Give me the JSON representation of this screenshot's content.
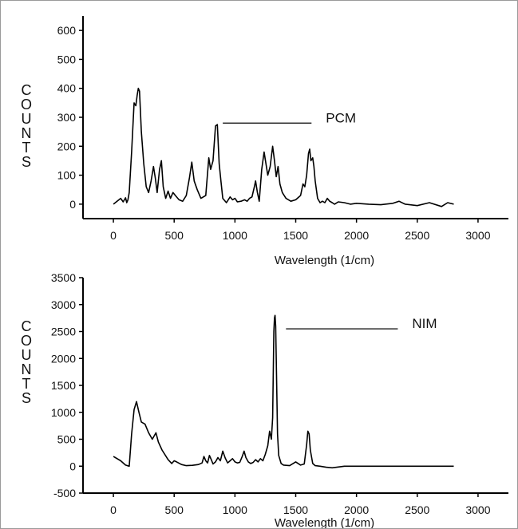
{
  "chart_data": [
    {
      "type": "line",
      "xlabel": "Wavelength (1/cm)",
      "ylabel": "COUNTS",
      "xlim": [
        -250,
        3250
      ],
      "ylim": [
        -50,
        650
      ],
      "xticks": [
        0,
        500,
        1000,
        1500,
        2000,
        2500,
        3000
      ],
      "yticks": [
        0,
        100,
        200,
        300,
        400,
        500,
        600
      ],
      "annotation": {
        "text": "PCM",
        "line_x": [
          900,
          1630
        ],
        "y": 280
      },
      "series": [
        {
          "x": [
            0,
            60,
            80,
            100,
            110,
            120,
            130,
            150,
            170,
            185,
            195,
            205,
            215,
            230,
            250,
            270,
            290,
            310,
            330,
            345,
            360,
            380,
            395,
            410,
            430,
            450,
            470,
            490,
            510,
            540,
            570,
            600,
            625,
            645,
            665,
            690,
            720,
            760,
            785,
            800,
            820,
            840,
            855,
            870,
            885,
            900,
            930,
            960,
            980,
            1000,
            1020,
            1050,
            1080,
            1100,
            1120,
            1140,
            1160,
            1170,
            1185,
            1200,
            1220,
            1240,
            1255,
            1270,
            1290,
            1310,
            1325,
            1340,
            1355,
            1370,
            1390,
            1420,
            1460,
            1500,
            1540,
            1560,
            1575,
            1590,
            1605,
            1615,
            1625,
            1640,
            1650,
            1660,
            1680,
            1700,
            1720,
            1740,
            1760,
            1780,
            1800,
            1820,
            1850,
            1900,
            1950,
            2000,
            2100,
            2200,
            2300,
            2350,
            2400,
            2500,
            2600,
            2700,
            2750,
            2800
          ],
          "y": [
            0,
            20,
            8,
            22,
            5,
            15,
            40,
            180,
            350,
            340,
            375,
            400,
            390,
            250,
            140,
            60,
            40,
            80,
            130,
            90,
            40,
            120,
            150,
            60,
            20,
            45,
            20,
            40,
            30,
            15,
            10,
            30,
            90,
            145,
            80,
            50,
            20,
            30,
            160,
            120,
            150,
            270,
            275,
            140,
            80,
            20,
            5,
            25,
            15,
            20,
            8,
            10,
            15,
            10,
            20,
            25,
            60,
            80,
            40,
            10,
            120,
            180,
            140,
            100,
            130,
            200,
            150,
            95,
            130,
            70,
            40,
            20,
            10,
            15,
            30,
            70,
            60,
            100,
            175,
            190,
            150,
            160,
            130,
            80,
            20,
            5,
            10,
            5,
            20,
            10,
            5,
            0,
            8,
            5,
            0,
            3,
            0,
            -2,
            3,
            10,
            0,
            -5,
            5,
            -8,
            5,
            0
          ]
        }
      ]
    },
    {
      "type": "line",
      "xlabel": "Wavelength (1/cm)",
      "ylabel": "COUNTS",
      "xlim": [
        -250,
        3250
      ],
      "ylim": [
        -500,
        3500
      ],
      "xticks": [
        0,
        500,
        1000,
        1500,
        2000,
        2500,
        3000
      ],
      "yticks": [
        -500,
        0,
        500,
        1000,
        1500,
        2000,
        2500,
        3000,
        3500
      ],
      "annotation": {
        "text": "NIM",
        "line_x": [
          1420,
          2340
        ],
        "y": 2550
      },
      "series": [
        {
          "x": [
            0,
            60,
            100,
            130,
            150,
            170,
            190,
            210,
            230,
            260,
            290,
            320,
            350,
            370,
            400,
            450,
            480,
            500,
            520,
            560,
            600,
            650,
            700,
            730,
            745,
            760,
            775,
            790,
            805,
            820,
            840,
            860,
            880,
            900,
            920,
            940,
            960,
            980,
            1000,
            1020,
            1040,
            1060,
            1075,
            1090,
            1110,
            1130,
            1150,
            1170,
            1190,
            1210,
            1230,
            1250,
            1270,
            1285,
            1300,
            1310,
            1320,
            1325,
            1330,
            1335,
            1340,
            1345,
            1350,
            1360,
            1380,
            1400,
            1450,
            1500,
            1540,
            1570,
            1590,
            1600,
            1610,
            1620,
            1640,
            1660,
            1700,
            1750,
            1800,
            1900,
            2000,
            2200,
            2400,
            2600,
            2800
          ],
          "y": [
            180,
            100,
            20,
            0,
            600,
            1050,
            1200,
            1000,
            820,
            780,
            620,
            500,
            620,
            450,
            300,
            120,
            50,
            100,
            80,
            30,
            10,
            15,
            30,
            60,
            180,
            100,
            60,
            200,
            120,
            40,
            80,
            160,
            100,
            280,
            150,
            60,
            100,
            140,
            80,
            60,
            70,
            180,
            280,
            160,
            80,
            50,
            70,
            120,
            80,
            140,
            100,
            220,
            380,
            650,
            500,
            900,
            2500,
            2750,
            2800,
            2600,
            2000,
            1300,
            600,
            200,
            50,
            20,
            10,
            80,
            20,
            40,
            400,
            650,
            600,
            300,
            50,
            10,
            0,
            -20,
            -30,
            0,
            0,
            0,
            0,
            0,
            0
          ]
        }
      ]
    }
  ]
}
